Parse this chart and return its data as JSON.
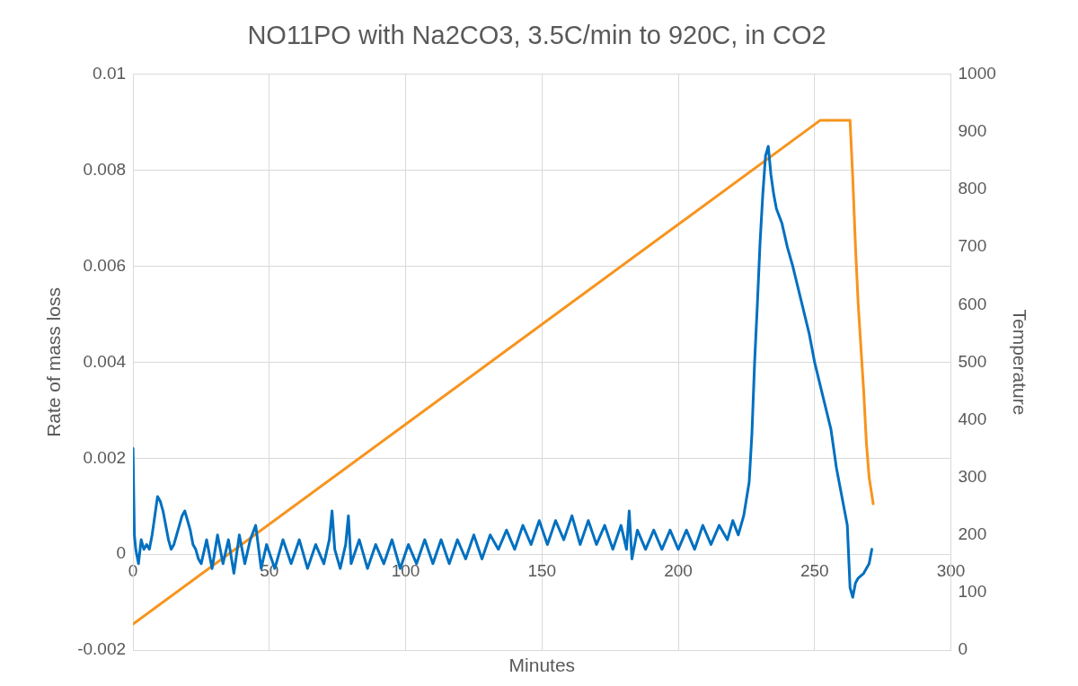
{
  "chart_data": {
    "type": "line",
    "title": "NO11PO with Na2CO3, 3.5C/min to 920C, in CO2",
    "xlabel": "Minutes",
    "ylabel": "Rate of mass loss",
    "y2label": "Temperature",
    "xlim": [
      0,
      300
    ],
    "xticks": [
      0,
      50,
      100,
      150,
      200,
      250,
      300
    ],
    "ylim": [
      -0.002,
      0.01
    ],
    "yticks": [
      -0.002,
      0,
      0.002,
      0.004,
      0.006,
      0.008,
      0.01
    ],
    "y2lim": [
      0,
      1000
    ],
    "y2ticks": [
      0,
      100,
      200,
      300,
      400,
      500,
      600,
      700,
      800,
      900,
      1000
    ],
    "grid": true,
    "legend": false,
    "series": [
      {
        "color": "#0070c0",
        "x": [
          0,
          0.5,
          1,
          2,
          3,
          4,
          5,
          6,
          7,
          8,
          9,
          10,
          11,
          12,
          13,
          14,
          15,
          16,
          17,
          18,
          19,
          20,
          21,
          22,
          23,
          24,
          25,
          27,
          29,
          31,
          33,
          35,
          37,
          39,
          41,
          43,
          45,
          47,
          49,
          52,
          55,
          58,
          61,
          64,
          67,
          70,
          72,
          73,
          74,
          76,
          78,
          79,
          80,
          83,
          86,
          89,
          92,
          95,
          98,
          101,
          104,
          107,
          110,
          113,
          116,
          119,
          122,
          125,
          128,
          131,
          134,
          137,
          140,
          143,
          146,
          149,
          152,
          155,
          158,
          161,
          164,
          167,
          170,
          173,
          176,
          179,
          181,
          182,
          183,
          185,
          188,
          191,
          194,
          197,
          200,
          203,
          206,
          209,
          212,
          215,
          218,
          220,
          222,
          224,
          226,
          227,
          228,
          229,
          230,
          231,
          232,
          233,
          234,
          235,
          236,
          238,
          240,
          242,
          245,
          248,
          250,
          253,
          256,
          258,
          260,
          261,
          262,
          263,
          264,
          265,
          266,
          268,
          270,
          271
        ],
        "values": [
          0.0022,
          0.0004,
          0.0001,
          -0.0002,
          0.0003,
          0.0001,
          0.0002,
          0.0001,
          0.0004,
          0.0008,
          0.0012,
          0.0011,
          0.0009,
          0.0006,
          0.0003,
          0.0001,
          0.0002,
          0.0004,
          0.0006,
          0.0008,
          0.0009,
          0.0007,
          0.0005,
          0.0002,
          0.0001,
          -0.0001,
          -0.0002,
          0.0003,
          -0.0003,
          0.0004,
          -0.0002,
          0.0003,
          -0.0004,
          0.0004,
          -0.0002,
          0.0003,
          0.0006,
          -0.0003,
          0.0002,
          -0.0003,
          0.0003,
          -0.0002,
          0.0003,
          -0.0003,
          0.0002,
          -0.0002,
          0.0003,
          0.0009,
          0.0001,
          -0.0003,
          0.0002,
          0.0008,
          -0.0002,
          0.0003,
          -0.0003,
          0.0002,
          -0.0002,
          0.0003,
          -0.0003,
          0.0002,
          -0.0002,
          0.0003,
          -0.0002,
          0.0003,
          -0.0002,
          0.0003,
          -0.0001,
          0.0004,
          -0.0001,
          0.0004,
          0.0001,
          0.0005,
          0.0001,
          0.0006,
          0.0002,
          0.0007,
          0.0002,
          0.0007,
          0.0003,
          0.0008,
          0.0002,
          0.0007,
          0.0002,
          0.0006,
          0.0001,
          0.0006,
          0.0001,
          0.0009,
          -0.0001,
          0.0005,
          0.0001,
          0.0005,
          0.0001,
          0.0005,
          0.0001,
          0.0005,
          0.0001,
          0.0006,
          0.0002,
          0.0006,
          0.0003,
          0.0007,
          0.0004,
          0.0008,
          0.0015,
          0.0025,
          0.004,
          0.0052,
          0.0065,
          0.0075,
          0.0083,
          0.0085,
          0.0079,
          0.0075,
          0.0072,
          0.0069,
          0.0064,
          0.006,
          0.0053,
          0.0046,
          0.004,
          0.0033,
          0.0026,
          0.0018,
          0.0012,
          0.0009,
          0.0006,
          -0.0007,
          -0.0009,
          -0.0006,
          -0.0005,
          -0.0004,
          -0.0002,
          0.0001
        ]
      },
      {
        "axis": "y2",
        "color": "#f7941d",
        "x": [
          0,
          252,
          263,
          264,
          265,
          266,
          268,
          269,
          270,
          271.5
        ],
        "values": [
          45,
          920,
          920,
          820,
          700,
          600,
          450,
          360,
          300,
          254
        ]
      }
    ]
  }
}
